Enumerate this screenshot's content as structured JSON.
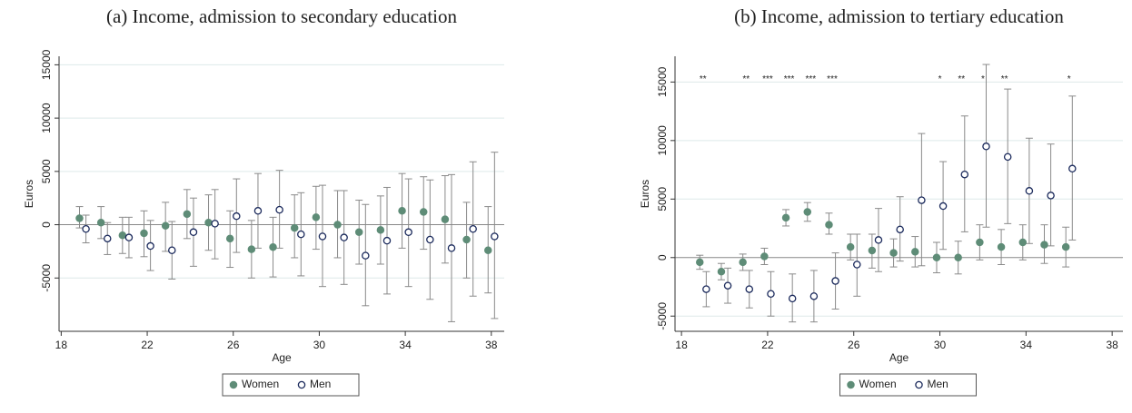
{
  "chart_data": [
    {
      "type": "scatter",
      "title": "(a) Income, admission to secondary education",
      "x_label": "Age",
      "y_label": "Euros",
      "x": [
        19,
        20,
        21,
        22,
        23,
        24,
        25,
        26,
        27,
        28,
        29,
        30,
        31,
        32,
        33,
        34,
        35,
        36,
        37,
        38
      ],
      "series": [
        {
          "name": "Women",
          "color": "#5e8c77",
          "marker": "filled",
          "values": [
            600,
            200,
            -1000,
            -800,
            -100,
            1000,
            200,
            -1300,
            -2300,
            -2100,
            -300,
            700,
            0,
            -700,
            -500,
            1300,
            1200,
            500,
            -1400,
            -2400
          ],
          "ci_low": [
            -300,
            -1300,
            -2700,
            -3000,
            -2500,
            -1300,
            -2400,
            -4000,
            -5000,
            -4900,
            -3100,
            -2300,
            -3100,
            -3700,
            -3700,
            -2200,
            -2300,
            -3600,
            -5000,
            -6400
          ],
          "ci_high": [
            1700,
            1700,
            700,
            1300,
            2100,
            3300,
            2800,
            1300,
            400,
            700,
            2800,
            3600,
            3200,
            2300,
            2700,
            4800,
            4500,
            4600,
            2100,
            1700
          ]
        },
        {
          "name": "Men",
          "color": "#1b2a5c",
          "marker": "hollow",
          "values": [
            -400,
            -1300,
            -1200,
            -2000,
            -2400,
            -700,
            100,
            800,
            1300,
            1400,
            -900,
            -1100,
            -1200,
            -2900,
            -1500,
            -700,
            -1400,
            -2200,
            -400,
            -1100
          ],
          "ci_low": [
            -1700,
            -2800,
            -3100,
            -4300,
            -5100,
            -3900,
            -3200,
            -2600,
            -2200,
            -2200,
            -4800,
            -5800,
            -5600,
            -7600,
            -6500,
            -5800,
            -7000,
            -9100,
            -6700,
            -8800
          ],
          "ci_high": [
            900,
            200,
            700,
            400,
            300,
            2500,
            3300,
            4300,
            4800,
            5100,
            3000,
            3700,
            3200,
            1900,
            3500,
            4300,
            4200,
            4700,
            5900,
            6800
          ]
        }
      ],
      "xlim": [
        17.9,
        38.6
      ],
      "ylim": [
        -10000,
        15800
      ],
      "xticks": [
        18,
        22,
        26,
        30,
        34,
        38
      ],
      "yticks": [
        -5000,
        0,
        5000,
        10000,
        15000
      ],
      "grid": true
    },
    {
      "type": "scatter",
      "title": "(b) Income, admission to tertiary education",
      "x_label": "Age",
      "y_label": "Euros",
      "x": [
        19,
        20,
        21,
        22,
        23,
        24,
        25,
        26,
        27,
        28,
        29,
        30,
        31,
        32,
        33,
        34,
        35,
        36
      ],
      "series": [
        {
          "name": "Women",
          "color": "#5e8c77",
          "marker": "filled",
          "values": [
            -400,
            -1200,
            -400,
            100,
            3400,
            3900,
            2800,
            900,
            600,
            400,
            500,
            0,
            0,
            1300,
            900,
            1300,
            1100,
            900
          ],
          "ci_low": [
            -1000,
            -1900,
            -1100,
            -600,
            2700,
            3100,
            2000,
            -200,
            -900,
            -800,
            -800,
            -1300,
            -1400,
            -200,
            -600,
            -200,
            -500,
            -800
          ],
          "ci_high": [
            200,
            -500,
            300,
            800,
            4100,
            4700,
            3800,
            2000,
            2000,
            1600,
            1800,
            1300,
            1400,
            2800,
            2400,
            2800,
            2800,
            2600
          ]
        },
        {
          "name": "Men",
          "color": "#1b2a5c",
          "marker": "hollow",
          "values": [
            -2700,
            -2400,
            -2700,
            -3100,
            -3500,
            -3300,
            -2000,
            -600,
            1500,
            2400,
            4900,
            4400,
            7100,
            9500,
            8600,
            5700,
            5300,
            7600
          ],
          "ci_low": [
            -4200,
            -3900,
            -4300,
            -5000,
            -5500,
            -5500,
            -4400,
            -3300,
            -1200,
            -300,
            -700,
            700,
            2200,
            2600,
            2900,
            1200,
            1000,
            1500
          ],
          "ci_high": [
            -1200,
            -900,
            -1100,
            -1200,
            -1400,
            -1100,
            400,
            2000,
            4200,
            5200,
            10600,
            8200,
            12100,
            16500,
            14400,
            10200,
            9700,
            13800
          ]
        }
      ],
      "annotations": [
        {
          "x": 19,
          "text": "**"
        },
        {
          "x": 21,
          "text": "**"
        },
        {
          "x": 22,
          "text": "***"
        },
        {
          "x": 23,
          "text": "***"
        },
        {
          "x": 24,
          "text": "***"
        },
        {
          "x": 25,
          "text": "***"
        },
        {
          "x": 30,
          "text": "*"
        },
        {
          "x": 31,
          "text": "**"
        },
        {
          "x": 32,
          "text": "*"
        },
        {
          "x": 33,
          "text": "**"
        },
        {
          "x": 36,
          "text": "*"
        }
      ],
      "xlim": [
        17.7,
        38.5
      ],
      "ylim": [
        -6300,
        17200
      ],
      "xticks": [
        18,
        22,
        26,
        30,
        34,
        38
      ],
      "yticks": [
        -5000,
        0,
        5000,
        10000,
        15000
      ],
      "grid": true
    }
  ]
}
